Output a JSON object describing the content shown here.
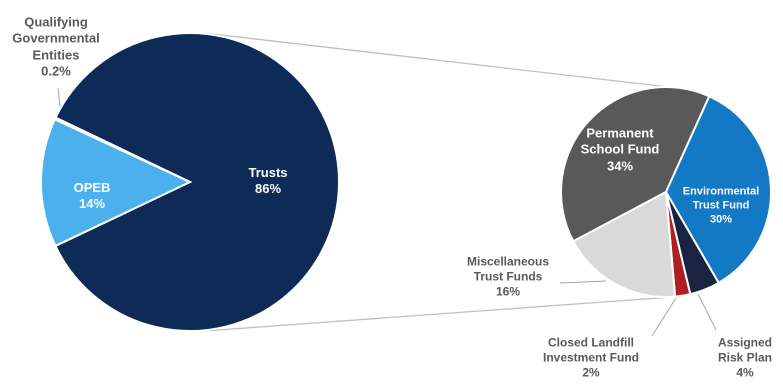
{
  "chart_data": [
    {
      "type": "pie",
      "categories": [
        "Trusts",
        "OPEB",
        "Qualifying Governmental Entities"
      ],
      "values": [
        86,
        14,
        0.2
      ],
      "value_labels": [
        "86%",
        "14%",
        "0.2%"
      ],
      "colors": [
        "#0e2a56",
        "#4cb0ec",
        "#ffffff"
      ]
    },
    {
      "type": "pie",
      "categories": [
        "Permanent School Fund",
        "Environmental Trust Fund",
        "Assigned Risk Plan",
        "Closed Landfill Investment Fund",
        "Miscellaneous Trust Funds"
      ],
      "values": [
        34,
        30,
        4,
        2,
        16
      ],
      "value_labels": [
        "34%",
        "30%",
        "4%",
        "2%",
        "16%"
      ],
      "colors": [
        "#595959",
        "#1479c4",
        "#1a2440",
        "#b01e24",
        "#d9d9d9"
      ]
    }
  ]
}
